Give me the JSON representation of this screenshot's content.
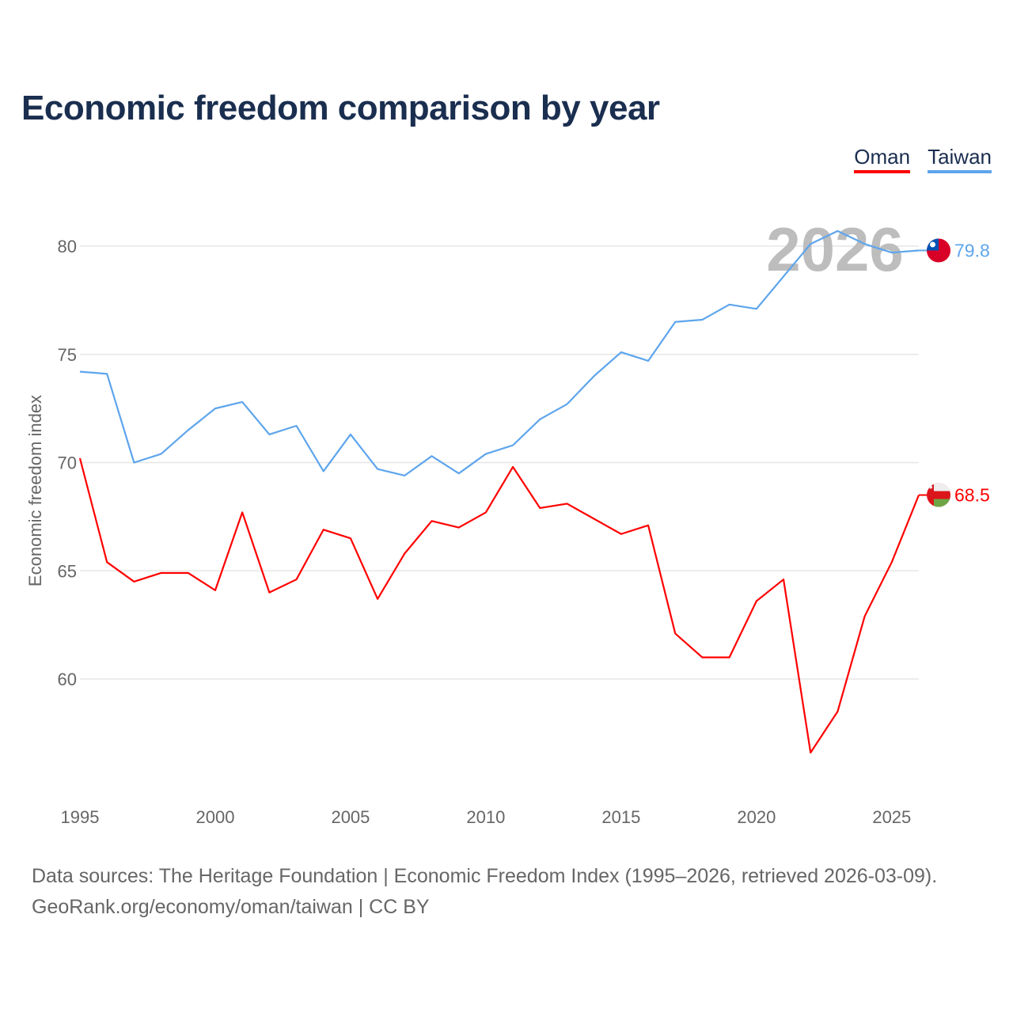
{
  "title": "Economic freedom comparison by year",
  "year_label": "2026",
  "source_line1": "Data sources: The Heritage Foundation | Economic Freedom Index (1995–2026, retrieved 2026-03-09).",
  "source_line2": "GeoRank.org/economy/oman/taiwan | CC BY",
  "chart_data": {
    "type": "line",
    "title": "Economic freedom comparison by year",
    "xlabel": "",
    "ylabel": "Economic freedom index",
    "xlim": [
      1995,
      2026
    ],
    "ylim": [
      54,
      82
    ],
    "yticks": [
      60,
      65,
      70,
      75,
      80
    ],
    "xticks": [
      1995,
      2000,
      2005,
      2010,
      2015,
      2020,
      2025
    ],
    "grid": true,
    "legend_position": "top-right",
    "x": [
      1995,
      1996,
      1997,
      1998,
      1999,
      2000,
      2001,
      2002,
      2003,
      2004,
      2005,
      2006,
      2007,
      2008,
      2009,
      2010,
      2011,
      2012,
      2013,
      2014,
      2015,
      2016,
      2017,
      2018,
      2019,
      2020,
      2021,
      2022,
      2023,
      2024,
      2025,
      2026
    ],
    "series": [
      {
        "name": "Oman",
        "color": "#ff0000",
        "end_label": "68.5",
        "values": [
          70.2,
          65.4,
          64.5,
          64.9,
          64.9,
          64.1,
          67.7,
          64.0,
          64.6,
          66.9,
          66.5,
          63.7,
          65.8,
          67.3,
          67.0,
          67.7,
          69.8,
          67.9,
          68.1,
          67.4,
          66.7,
          67.1,
          62.1,
          61.0,
          61.0,
          63.6,
          64.6,
          56.6,
          58.5,
          62.9,
          65.4,
          68.5
        ]
      },
      {
        "name": "Taiwan",
        "color": "#5ea5ec",
        "end_label": "79.8",
        "values": [
          74.2,
          74.1,
          70.0,
          70.4,
          71.5,
          72.5,
          72.8,
          71.3,
          71.7,
          69.6,
          71.3,
          69.7,
          69.4,
          70.3,
          69.5,
          70.4,
          70.8,
          72.0,
          72.7,
          74.0,
          75.1,
          74.7,
          76.5,
          76.6,
          77.3,
          77.1,
          78.6,
          80.1,
          80.7,
          80.1,
          79.7,
          79.8
        ]
      }
    ]
  }
}
